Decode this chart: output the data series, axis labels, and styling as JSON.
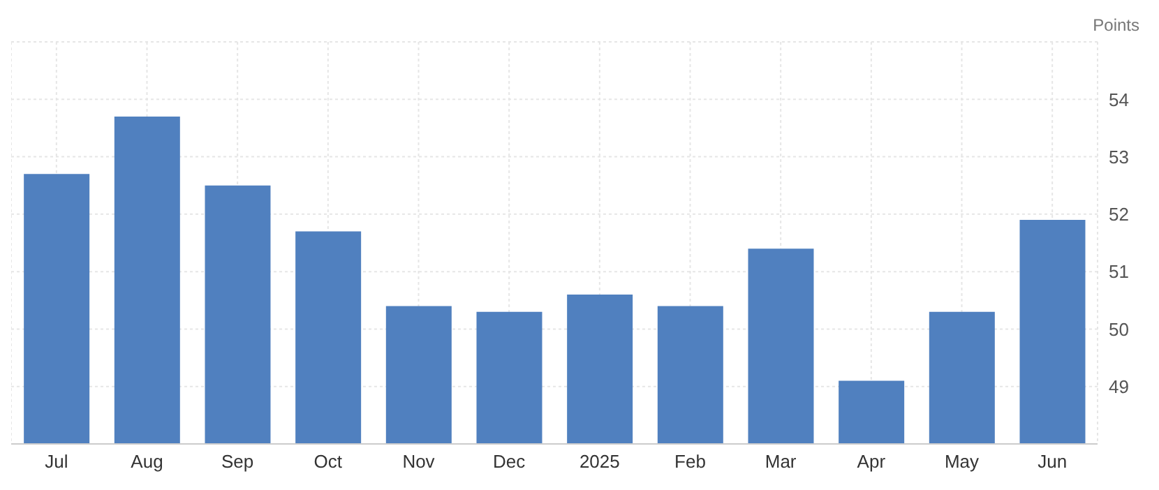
{
  "chart_data": {
    "type": "bar",
    "ylabel": "Points",
    "categories": [
      "Jul",
      "Aug",
      "Sep",
      "Oct",
      "Nov",
      "Dec",
      "2025",
      "Feb",
      "Mar",
      "Apr",
      "May",
      "Jun"
    ],
    "values": [
      52.7,
      53.7,
      52.5,
      51.7,
      50.4,
      50.3,
      50.6,
      50.4,
      51.4,
      49.1,
      50.3,
      51.9
    ],
    "color": "#5080bf",
    "ylim": [
      48,
      55
    ],
    "yticks": [
      49,
      50,
      51,
      52,
      53,
      54
    ],
    "grid": true
  }
}
